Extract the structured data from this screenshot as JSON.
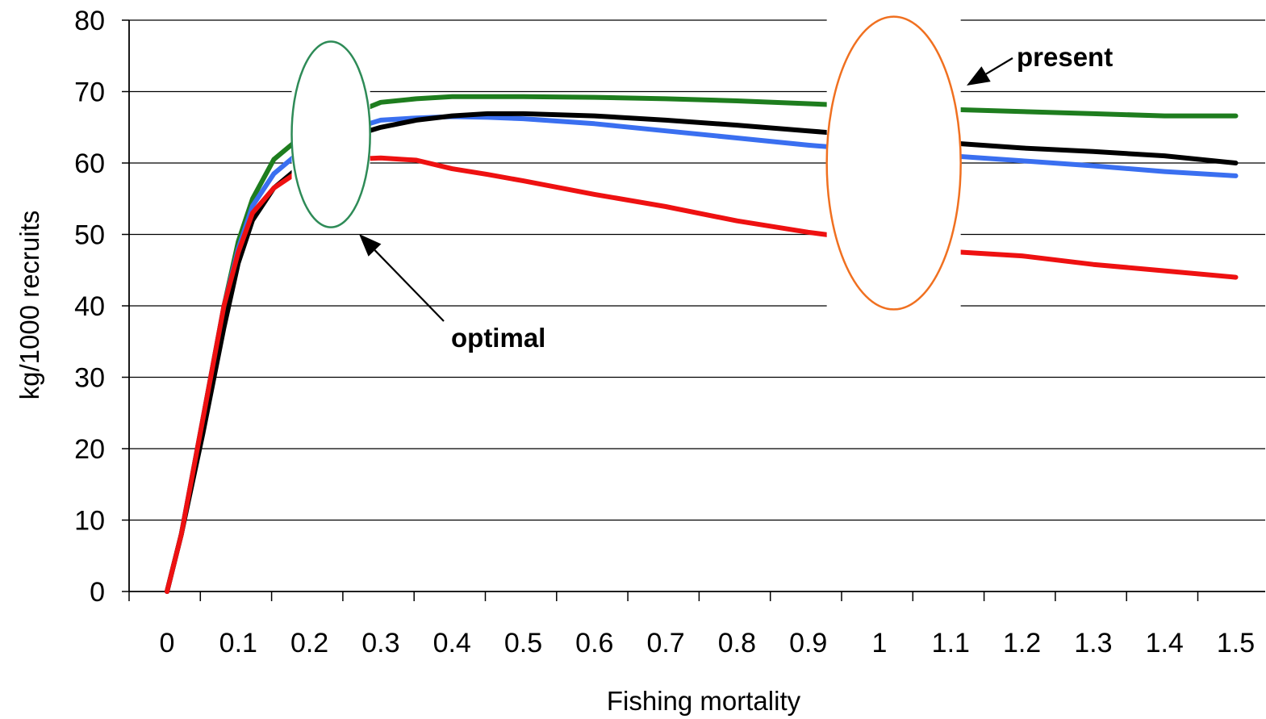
{
  "chart_data": {
    "type": "line",
    "xlabel": "Fishing mortality",
    "ylabel": "kg/1000 recruits",
    "ylim": [
      0,
      80
    ],
    "y_ticks": [
      0,
      10,
      20,
      30,
      40,
      50,
      60,
      70,
      80
    ],
    "x_ticks": [
      0,
      0.1,
      0.2,
      0.3,
      0.4,
      0.5,
      0.6,
      0.7,
      0.8,
      0.9,
      1,
      1.1,
      1.2,
      1.3,
      1.4,
      1.5
    ],
    "x_tick_labels": [
      "0",
      "0.1",
      "0.2",
      "0.3",
      "0.4",
      "0.5",
      "0.6",
      "0.7",
      "0.8",
      "0.9",
      "1",
      "1.1",
      "1.2",
      "1.3",
      "1.4",
      "1.5"
    ],
    "grid": "horizontal",
    "series": [
      {
        "color": "#1e7d1e",
        "x": [
          0,
          0.02,
          0.05,
          0.08,
          0.1,
          0.12,
          0.15,
          0.18,
          0.2,
          0.25,
          0.3,
          0.35,
          0.4,
          0.45,
          0.5,
          0.6,
          0.7,
          0.8,
          0.9,
          1,
          1.1,
          1.2,
          1.3,
          1.4,
          1.5
        ],
        "y": [
          0,
          8,
          24,
          40,
          49,
          55,
          60.5,
          63,
          64.5,
          66.5,
          68.5,
          69,
          69.3,
          69.3,
          69.3,
          69.2,
          69,
          68.7,
          68.3,
          67.9,
          67.5,
          67.2,
          66.9,
          66.6,
          66.6
        ]
      },
      {
        "color": "#3a6ff0",
        "x": [
          0,
          0.02,
          0.05,
          0.08,
          0.1,
          0.12,
          0.15,
          0.18,
          0.2,
          0.25,
          0.3,
          0.35,
          0.4,
          0.45,
          0.5,
          0.6,
          0.7,
          0.8,
          0.9,
          1,
          1.1,
          1.2,
          1.3,
          1.4,
          1.5
        ],
        "y": [
          0,
          8,
          24,
          40,
          48,
          54,
          58.5,
          61,
          62.5,
          64.5,
          66,
          66.3,
          66.5,
          66.4,
          66.2,
          65.5,
          64.5,
          63.5,
          62.5,
          61.7,
          61,
          60.3,
          59.6,
          58.8,
          58.2
        ]
      },
      {
        "color": "#000000",
        "x": [
          0,
          0.02,
          0.05,
          0.08,
          0.1,
          0.12,
          0.15,
          0.18,
          0.2,
          0.25,
          0.3,
          0.35,
          0.4,
          0.45,
          0.5,
          0.6,
          0.7,
          0.8,
          0.9,
          1,
          1.1,
          1.2,
          1.3,
          1.4,
          1.5
        ],
        "y": [
          0,
          8,
          22,
          37,
          46,
          52,
          56.5,
          59,
          60.5,
          63.5,
          65,
          66,
          66.6,
          66.9,
          66.9,
          66.6,
          66,
          65.3,
          64.5,
          63.7,
          62.8,
          62.1,
          61.6,
          61,
          60
        ]
      },
      {
        "color": "#ee1111",
        "x": [
          0,
          0.02,
          0.05,
          0.08,
          0.1,
          0.12,
          0.15,
          0.18,
          0.2,
          0.25,
          0.3,
          0.35,
          0.4,
          0.45,
          0.5,
          0.6,
          0.7,
          0.8,
          0.9,
          1,
          1.1,
          1.2,
          1.3,
          1.4,
          1.5
        ],
        "y": [
          0,
          8,
          24,
          40,
          47.5,
          53,
          56.5,
          58.5,
          59.5,
          60.5,
          60.7,
          60.4,
          59.2,
          58.4,
          57.5,
          55.6,
          53.9,
          51.9,
          50.3,
          49,
          47.6,
          47,
          45.8,
          44.9,
          44
        ]
      }
    ],
    "annotations": [
      {
        "text": "optimal",
        "target": {
          "x": 0.27,
          "y": 50
        }
      },
      {
        "text": "present",
        "target": {
          "x": 1.12,
          "y": 71
        }
      }
    ],
    "highlight_ellipses": [
      {
        "color": "#2e8b57",
        "cx": 0.23,
        "cy": 64,
        "rx": 0.055,
        "ry": 13
      },
      {
        "color": "#f07020",
        "cx": 1.02,
        "cy": 60,
        "rx": 0.094,
        "ry": 20.5
      }
    ]
  }
}
